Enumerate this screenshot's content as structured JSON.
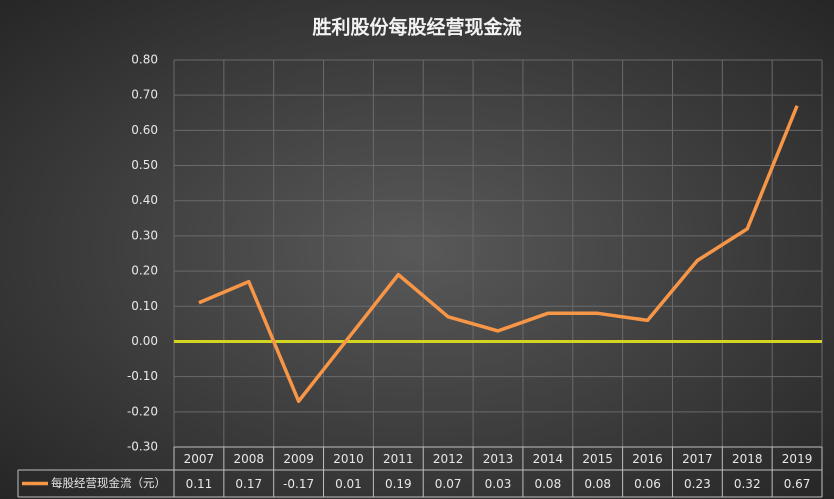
{
  "chart_data": {
    "type": "line",
    "title": "胜利股份每股经营现金流",
    "categories": [
      "2007",
      "2008",
      "2009",
      "2010",
      "2011",
      "2012",
      "2013",
      "2014",
      "2015",
      "2016",
      "2017",
      "2018",
      "2019"
    ],
    "series": [
      {
        "name": "每股经营现金流（元）",
        "color": "#f79646",
        "values": [
          0.11,
          0.17,
          -0.17,
          0.01,
          0.19,
          0.07,
          0.03,
          0.08,
          0.08,
          0.06,
          0.23,
          0.32,
          0.67
        ]
      }
    ],
    "ylim": [
      -0.3,
      0.8
    ],
    "yticks": [
      {
        "value": -0.3,
        "label": "-0.30"
      },
      {
        "value": -0.2,
        "label": "-0.20"
      },
      {
        "value": -0.1,
        "label": "-0.10"
      },
      {
        "value": 0,
        "label": "0.00"
      },
      {
        "value": 0.1,
        "label": "0.10"
      },
      {
        "value": 0.2,
        "label": "0.20"
      },
      {
        "value": 0.3,
        "label": "0.30"
      },
      {
        "value": 0.4,
        "label": "0.40"
      },
      {
        "value": 0.5,
        "label": "0.50"
      },
      {
        "value": 0.6,
        "label": "0.60"
      },
      {
        "value": 0.7,
        "label": "0.70"
      },
      {
        "value": 0.8,
        "label": "0.80"
      }
    ],
    "grid": true,
    "zero_line_color": "#d4d422",
    "data_table": true
  }
}
